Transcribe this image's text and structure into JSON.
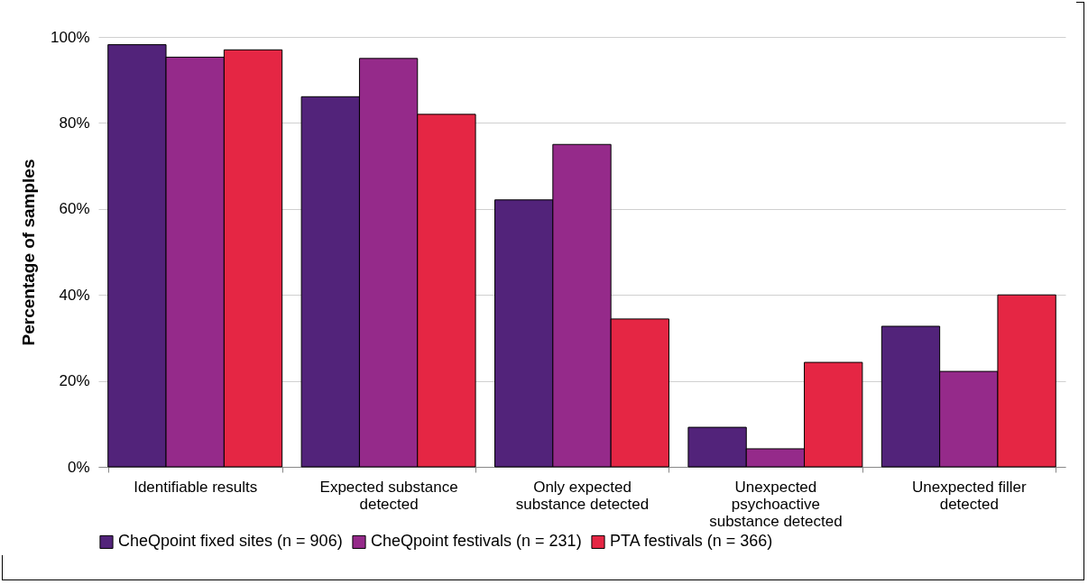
{
  "chart_data": {
    "type": "bar",
    "ylabel": "Percentage of samples",
    "categories": [
      "Identifiable results",
      "Expected substance\ndetected",
      "Only expected\nsubstance detected",
      "Unexpected\npsychoactive\nsubstance detected",
      "Unexpected filler\ndetected"
    ],
    "series": [
      {
        "name": "CheQpoint fixed sites (n = 906)",
        "color": "#52237a",
        "values": [
          98.2,
          86.1,
          62.1,
          9.2,
          32.7
        ]
      },
      {
        "name": "CheQpoint festivals (n = 231)",
        "color": "#952a8a",
        "values": [
          95.3,
          95.0,
          75.0,
          4.2,
          22.2
        ]
      },
      {
        "name": "PTA festivals (n = 366)",
        "color": "#e52644",
        "values": [
          97.0,
          82.0,
          34.4,
          24.3,
          40.0
        ]
      }
    ],
    "ylim": [
      0,
      100
    ],
    "yticks": [
      {
        "value": 0,
        "label": "0%"
      },
      {
        "value": 20,
        "label": "20%"
      },
      {
        "value": 40,
        "label": "40%"
      },
      {
        "value": 60,
        "label": "60%"
      },
      {
        "value": 80,
        "label": "80%"
      },
      {
        "value": 100,
        "label": "100%"
      }
    ],
    "grid": "y",
    "legend": "bottom"
  }
}
